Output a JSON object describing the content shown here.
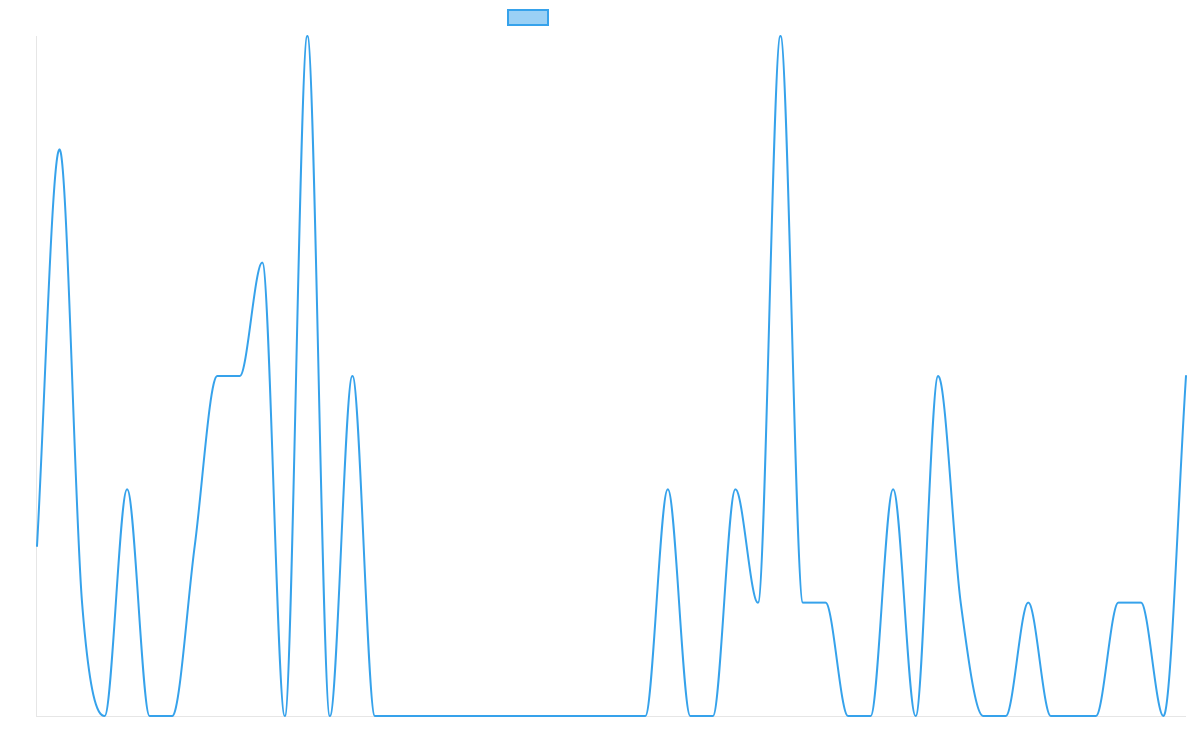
{
  "chart_data": {
    "type": "line",
    "x": [
      0,
      1,
      2,
      3,
      4,
      5,
      6,
      7,
      8,
      9,
      10,
      11,
      12,
      13,
      14,
      15,
      16,
      17,
      18,
      19,
      20,
      21,
      22,
      23,
      24,
      25,
      26,
      27,
      28,
      29,
      30,
      31,
      32,
      33,
      34,
      35,
      36,
      37,
      38,
      39,
      40,
      41,
      42,
      43,
      44,
      45,
      46,
      47,
      48,
      49,
      50,
      51
    ],
    "series": [
      {
        "values": [
          1.5,
          5,
          1,
          0,
          2,
          0,
          0,
          1.5,
          3,
          3,
          4,
          0,
          6,
          0,
          3,
          0,
          0,
          0,
          0,
          0,
          0,
          0,
          0,
          0,
          0,
          0,
          0,
          0,
          2,
          0,
          0,
          2,
          1,
          6,
          1,
          1,
          0,
          0,
          2,
          0,
          3,
          1,
          0,
          0,
          1,
          0,
          0,
          0,
          1,
          1,
          0,
          3
        ]
      }
    ],
    "ylim": [
      0,
      6
    ],
    "grid": false,
    "legend": "top-center",
    "colors": {
      "line": "#36a2eb",
      "legend_fill": "#9ad0f5",
      "axis": "#e6e6e6"
    }
  }
}
